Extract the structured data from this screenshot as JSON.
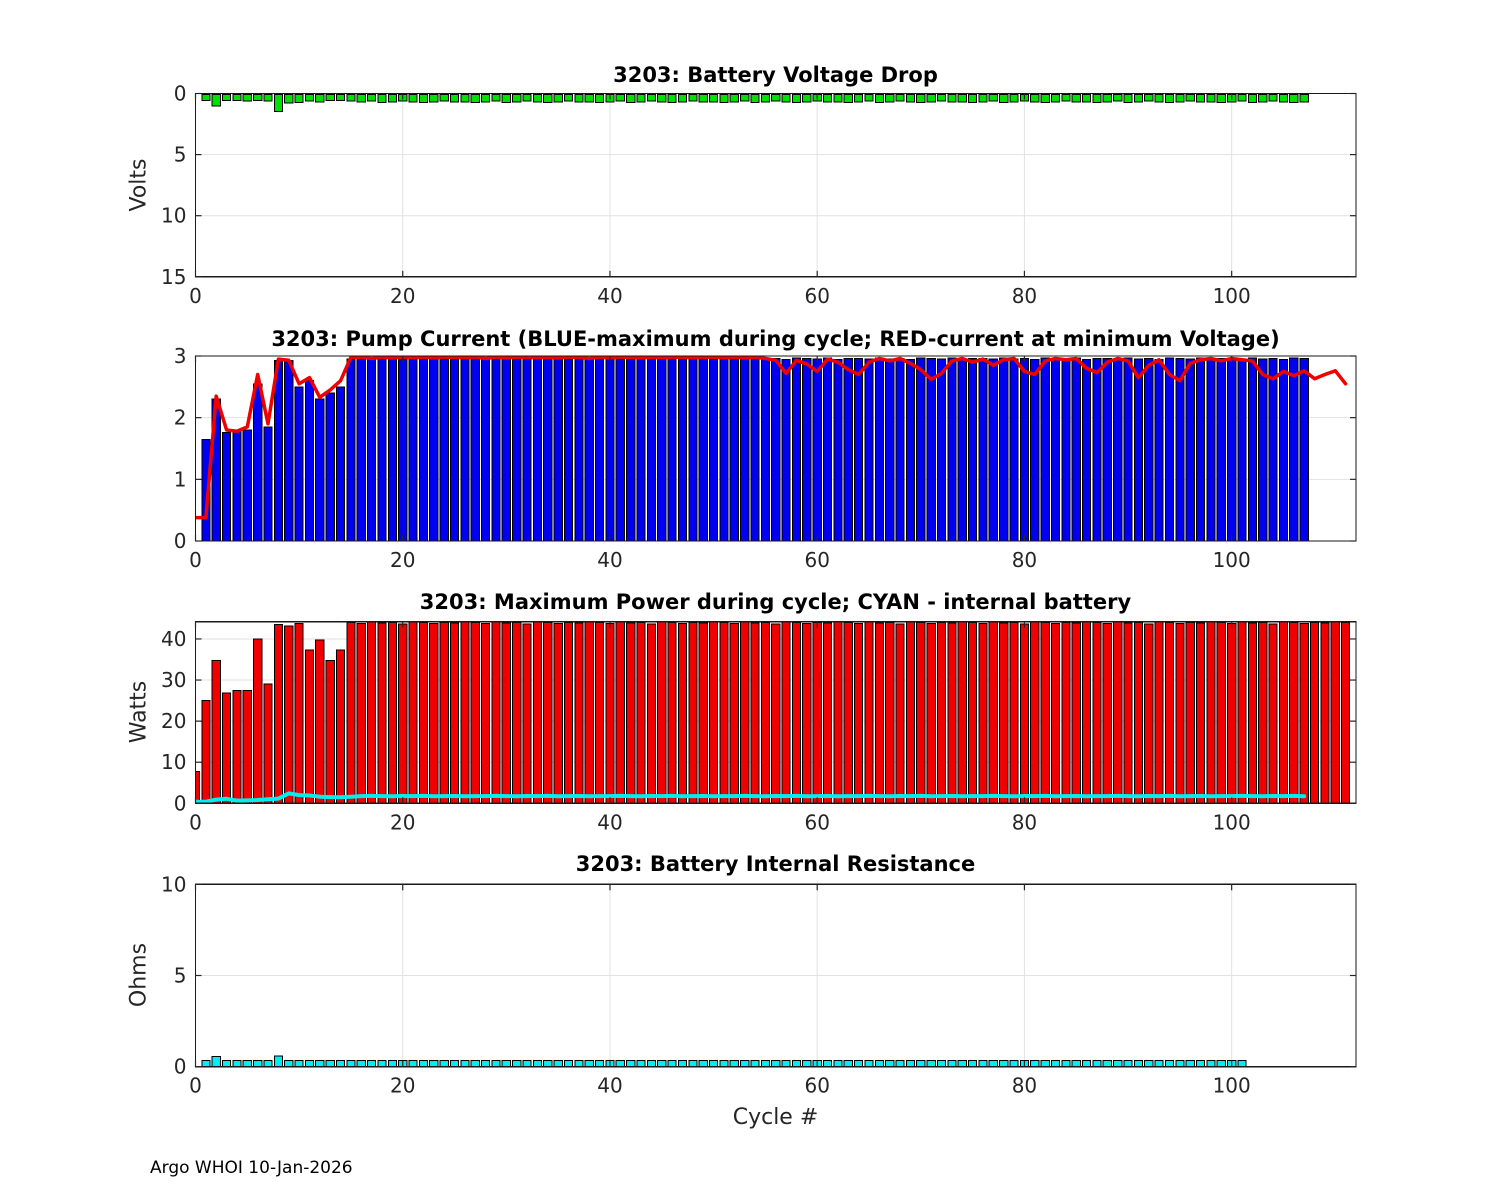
{
  "page": {
    "background": "#ffffff"
  },
  "footer": {
    "text": "Argo WHOI 10-Jan-2026"
  },
  "xlabel": "Cycle #",
  "chart_data": [
    {
      "id": "battery-voltage-drop",
      "type": "bar",
      "title": "3203: Battery Voltage Drop",
      "ylabel": "Volts",
      "bar_color": "#00e000",
      "bar_edge": "#000000",
      "ylim": [
        0,
        15
      ],
      "y_reversed": true,
      "yticks": [
        0,
        5,
        10,
        15
      ],
      "xlim": [
        0,
        112
      ],
      "xticks": [
        0,
        20,
        40,
        60,
        80,
        100
      ],
      "x_start": 1,
      "values": [
        0.3,
        0.95,
        0.45,
        0.45,
        0.55,
        0.5,
        0.55,
        1.4,
        0.7,
        0.65,
        0.55,
        0.6,
        0.5,
        0.45,
        0.55,
        0.6,
        0.55,
        0.65,
        0.6,
        0.55,
        0.6,
        0.65,
        0.6,
        0.55,
        0.6,
        0.6,
        0.65,
        0.6,
        0.55,
        0.65,
        0.6,
        0.55,
        0.6,
        0.65,
        0.6,
        0.55,
        0.6,
        0.6,
        0.65,
        0.6,
        0.55,
        0.65,
        0.6,
        0.55,
        0.6,
        0.65,
        0.6,
        0.55,
        0.6,
        0.6,
        0.65,
        0.6,
        0.55,
        0.65,
        0.6,
        0.55,
        0.6,
        0.65,
        0.6,
        0.55,
        0.6,
        0.6,
        0.65,
        0.6,
        0.55,
        0.65,
        0.6,
        0.55,
        0.6,
        0.65,
        0.6,
        0.55,
        0.6,
        0.6,
        0.65,
        0.6,
        0.55,
        0.65,
        0.6,
        0.55,
        0.6,
        0.65,
        0.6,
        0.55,
        0.6,
        0.6,
        0.65,
        0.6,
        0.55,
        0.65,
        0.6,
        0.55,
        0.6,
        0.65,
        0.6,
        0.55,
        0.6,
        0.6,
        0.65,
        0.6,
        0.55,
        0.65,
        0.6,
        0.55,
        0.6,
        0.65,
        0.6
      ]
    },
    {
      "id": "pump-current",
      "type": "bar+line",
      "title": "3203: Pump Current (BLUE-maximum during cycle; RED-current at minimum Voltage)",
      "ylabel": "",
      "bar_color": "#0000f0",
      "bar_edge": "#000000",
      "line_color": "#f00000",
      "ylim": [
        0,
        3
      ],
      "yticks": [
        0,
        1,
        2,
        3
      ],
      "xlim": [
        0,
        112
      ],
      "xticks": [
        0,
        20,
        40,
        60,
        80,
        100
      ],
      "x_start": 1,
      "bars": [
        1.65,
        2.3,
        1.76,
        1.78,
        1.8,
        2.55,
        1.85,
        2.93,
        2.93,
        2.5,
        2.6,
        2.3,
        2.4,
        2.5,
        2.95,
        2.96,
        2.95,
        2.97,
        2.95,
        2.96,
        2.94,
        2.97,
        2.96,
        2.95,
        2.97,
        2.94,
        2.96,
        2.96,
        2.95,
        2.97,
        2.95,
        2.96,
        2.94,
        2.97,
        2.96,
        2.95,
        2.97,
        2.94,
        2.96,
        2.96,
        2.95,
        2.97,
        2.95,
        2.96,
        2.94,
        2.97,
        2.96,
        2.95,
        2.97,
        2.94,
        2.96,
        2.96,
        2.95,
        2.97,
        2.95,
        2.96,
        2.94,
        2.97,
        2.96,
        2.95,
        2.97,
        2.94,
        2.96,
        2.96,
        2.95,
        2.97,
        2.95,
        2.96,
        2.94,
        2.97,
        2.96,
        2.95,
        2.97,
        2.94,
        2.96,
        2.96,
        2.95,
        2.97,
        2.95,
        2.96,
        2.94,
        2.97,
        2.96,
        2.95,
        2.97,
        2.94,
        2.96,
        2.96,
        2.95,
        2.97,
        2.95,
        2.96,
        2.94,
        2.97,
        2.96,
        2.95,
        2.97,
        2.94,
        2.96,
        2.96,
        2.95,
        2.97,
        2.95,
        2.96,
        2.94,
        2.97,
        2.96
      ],
      "line": [
        0.38,
        2.35,
        1.8,
        1.78,
        1.85,
        2.7,
        1.9,
        2.95,
        2.93,
        2.55,
        2.65,
        2.33,
        2.45,
        2.6,
        2.98,
        2.98,
        2.96,
        2.98,
        2.97,
        2.98,
        2.97,
        2.98,
        2.97,
        2.98,
        2.98,
        2.97,
        2.98,
        2.96,
        2.98,
        2.97,
        2.98,
        2.98,
        2.97,
        2.98,
        2.97,
        2.98,
        2.98,
        2.96,
        2.98,
        2.97,
        2.98,
        2.98,
        2.97,
        2.98,
        2.97,
        2.98,
        2.98,
        2.97,
        2.98,
        2.98,
        2.97,
        2.98,
        2.97,
        2.98,
        2.96,
        2.93,
        2.72,
        2.93,
        2.87,
        2.75,
        2.95,
        2.9,
        2.78,
        2.7,
        2.9,
        2.96,
        2.92,
        2.96,
        2.88,
        2.78,
        2.62,
        2.72,
        2.92,
        2.96,
        2.9,
        2.95,
        2.85,
        2.94,
        2.96,
        2.75,
        2.7,
        2.92,
        2.96,
        2.94,
        2.96,
        2.8,
        2.73,
        2.9,
        2.96,
        2.92,
        2.65,
        2.85,
        2.94,
        2.7,
        2.6,
        2.88,
        2.94,
        2.96,
        2.92,
        2.96,
        2.94,
        2.92,
        2.7,
        2.63,
        2.75,
        2.68,
        2.76,
        2.63,
        2.7,
        2.76,
        2.55
      ]
    },
    {
      "id": "max-power",
      "type": "bar+line",
      "title": "3203: Maximum Power during cycle; CYAN - internal battery",
      "ylabel": "Watts",
      "bar_color": "#f00000",
      "bar_edge": "#000000",
      "line_color": "#00eeee",
      "ylim": [
        0,
        44.2
      ],
      "yticks": [
        0,
        10,
        20,
        30,
        40
      ],
      "xlim": [
        0,
        112
      ],
      "xticks": [
        0,
        20,
        40,
        60,
        80,
        100
      ],
      "x_start": 0,
      "line_x_start": 1,
      "bars": [
        7.8,
        25,
        34.7,
        26.8,
        27.5,
        27.5,
        40,
        29,
        43.5,
        43.2,
        43.8,
        37.3,
        39.8,
        34.7,
        37.3,
        44.0,
        43.8,
        44.1,
        43.9,
        44.0,
        43.7,
        44.1,
        44.0,
        43.8,
        44.0,
        43.9,
        44.1,
        44.0,
        43.8,
        44.1,
        43.9,
        44.0,
        43.7,
        44.1,
        44.0,
        43.8,
        44.0,
        43.9,
        44.1,
        44.0,
        43.8,
        44.1,
        43.9,
        44.0,
        43.7,
        44.1,
        44.0,
        43.8,
        44.0,
        43.9,
        44.1,
        44.0,
        43.8,
        44.1,
        43.9,
        44.0,
        43.7,
        44.1,
        44.0,
        43.8,
        44.0,
        43.9,
        44.1,
        44.0,
        43.8,
        44.1,
        43.9,
        44.0,
        43.7,
        44.1,
        44.0,
        43.8,
        44.0,
        43.9,
        44.1,
        44.0,
        43.8,
        44.1,
        43.9,
        44.0,
        43.7,
        44.1,
        44.0,
        43.8,
        44.0,
        43.9,
        44.1,
        44.0,
        43.8,
        44.1,
        43.9,
        44.0,
        43.7,
        44.1,
        44.0,
        43.8,
        44.0,
        43.9,
        44.1,
        44.0,
        43.8,
        44.1,
        43.9,
        44.0,
        43.7,
        44.1,
        44.0,
        43.8,
        44.0,
        43.9,
        44.1,
        44.0
      ],
      "line": [
        0.4,
        0.9,
        1.1,
        0.65,
        0.7,
        0.8,
        1.0,
        1.15,
        2.4,
        2.0,
        1.9,
        1.6,
        1.5,
        1.45,
        1.6,
        1.75,
        1.8,
        1.75,
        1.7,
        1.78,
        1.75,
        1.8,
        1.72,
        1.75,
        1.78,
        1.7,
        1.75,
        1.75,
        1.8,
        1.75,
        1.7,
        1.78,
        1.75,
        1.8,
        1.72,
        1.75,
        1.78,
        1.7,
        1.75,
        1.75,
        1.8,
        1.75,
        1.7,
        1.78,
        1.75,
        1.8,
        1.72,
        1.75,
        1.78,
        1.7,
        1.75,
        1.75,
        1.8,
        1.75,
        1.7,
        1.78,
        1.75,
        1.8,
        1.72,
        1.75,
        1.78,
        1.7,
        1.75,
        1.75,
        1.8,
        1.75,
        1.7,
        1.78,
        1.75,
        1.8,
        1.72,
        1.75,
        1.78,
        1.7,
        1.75,
        1.75,
        1.8,
        1.75,
        1.7,
        1.78,
        1.75,
        1.8,
        1.72,
        1.75,
        1.78,
        1.7,
        1.75,
        1.75,
        1.8,
        1.75,
        1.7,
        1.78,
        1.75,
        1.8,
        1.72,
        1.75,
        1.78,
        1.7,
        1.75,
        1.75,
        1.8,
        1.75,
        1.7,
        1.78,
        1.75,
        1.8,
        1.72
      ]
    },
    {
      "id": "battery-internal-resistance",
      "type": "bar",
      "title": "3203: Battery Internal Resistance",
      "ylabel": "Ohms",
      "bar_color": "#00eeee",
      "bar_edge": "#000000",
      "ylim": [
        0,
        10
      ],
      "yticks": [
        0,
        5,
        10
      ],
      "xlim": [
        0,
        112
      ],
      "xticks": [
        0,
        20,
        40,
        60,
        80,
        100
      ],
      "x_start": 1,
      "values": [
        0.3,
        0.55,
        0.28,
        0.28,
        0.3,
        0.3,
        0.32,
        0.6,
        0.35,
        0.33,
        0.3,
        0.32,
        0.3,
        0.28,
        0.3,
        0.32,
        0.28,
        0.3,
        0.3,
        0.32,
        0.3,
        0.32,
        0.3,
        0.28,
        0.3,
        0.32,
        0.28,
        0.3,
        0.3,
        0.32,
        0.3,
        0.32,
        0.3,
        0.28,
        0.3,
        0.32,
        0.28,
        0.3,
        0.3,
        0.32,
        0.3,
        0.32,
        0.3,
        0.28,
        0.3,
        0.32,
        0.28,
        0.3,
        0.3,
        0.32,
        0.3,
        0.32,
        0.3,
        0.28,
        0.3,
        0.32,
        0.28,
        0.3,
        0.3,
        0.32,
        0.3,
        0.32,
        0.3,
        0.28,
        0.3,
        0.32,
        0.28,
        0.3,
        0.3,
        0.32,
        0.3,
        0.32,
        0.3,
        0.28,
        0.3,
        0.32,
        0.28,
        0.3,
        0.3,
        0.32,
        0.3,
        0.32,
        0.3,
        0.28,
        0.3,
        0.32,
        0.28,
        0.3,
        0.3,
        0.32,
        0.3,
        0.32,
        0.3,
        0.28,
        0.3,
        0.32,
        0.28,
        0.3,
        0.3,
        0.32,
        0.3
      ]
    }
  ]
}
